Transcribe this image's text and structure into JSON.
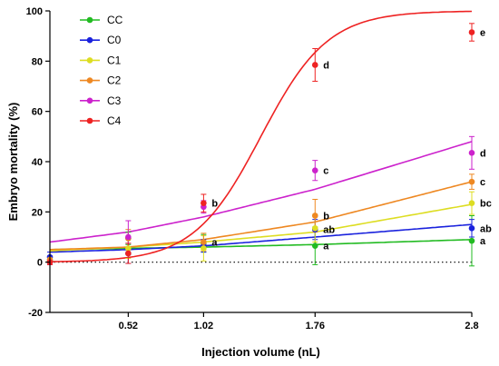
{
  "chart_data": {
    "type": "scatter",
    "xlabel": "Injection volume (nL)",
    "ylabel": "Embryo mortality (%)",
    "xlim": [
      0,
      2.8
    ],
    "ylim": [
      -20,
      100
    ],
    "x_ticks": [
      0.52,
      1.02,
      1.76,
      2.8
    ],
    "x_tick_labels": [
      "0.52",
      "1.02",
      "1.76",
      "2.8"
    ],
    "y_ticks": [
      -20,
      0,
      20,
      40,
      60,
      80,
      100
    ],
    "y_tick_labels": [
      "-20",
      "0",
      "20",
      "40",
      "60",
      "80",
      "100"
    ],
    "reference_line": 0,
    "legend_position": "top-left",
    "x": [
      0,
      0.52,
      1.02,
      1.76,
      2.8
    ],
    "series": [
      {
        "name": "CC",
        "color": "#22bb22",
        "values": [
          0.5,
          9.5,
          7.5,
          6.5,
          8.5
        ],
        "errors": [
          1.5,
          2.5,
          3.5,
          7.5,
          10
        ],
        "fit": [
          5,
          5.5,
          6,
          7,
          9
        ],
        "labels": [
          "",
          "",
          "",
          "a",
          "a"
        ]
      },
      {
        "name": "C0",
        "color": "#1a22dd",
        "values": [
          2,
          3.5,
          6.5,
          13,
          13.5
        ],
        "errors": [
          2,
          4,
          2.5,
          4,
          3.5
        ],
        "fit": [
          4,
          5,
          6.5,
          10,
          15
        ],
        "labels": [
          "",
          "",
          "",
          "ab",
          "ab"
        ]
      },
      {
        "name": "C1",
        "color": "#dddd22",
        "values": [
          1,
          5.5,
          5.5,
          13.5,
          23.5
        ],
        "errors": [
          1.5,
          4,
          5,
          5.5,
          4.5
        ],
        "fit": [
          4.5,
          6,
          8,
          12,
          23
        ],
        "labels": [
          "",
          "",
          "",
          "",
          "bc"
        ]
      },
      {
        "name": "C2",
        "color": "#ee8822",
        "values": [
          1,
          9.5,
          8,
          18.5,
          32
        ],
        "errors": [
          1.5,
          3.5,
          3.5,
          6.5,
          3
        ],
        "fit": [
          5,
          6,
          9,
          16,
          32
        ],
        "labels": [
          "",
          "",
          "a",
          "b",
          "c"
        ]
      },
      {
        "name": "C3",
        "color": "#cc22cc",
        "values": [
          0,
          10,
          22,
          36.5,
          43.5
        ],
        "errors": [
          1,
          6.5,
          2.5,
          4,
          6.5
        ],
        "fit": [
          8,
          12,
          18,
          29,
          48
        ],
        "labels": [
          "",
          "",
          "",
          "c",
          "d"
        ]
      },
      {
        "name": "C4",
        "color": "#ee2222",
        "values": [
          0,
          3.5,
          23.5,
          78.5,
          91.5
        ],
        "errors": [
          1,
          4,
          3.5,
          6.5,
          3.5
        ],
        "fit_logistic": {
          "top": 100,
          "bottom": 0,
          "midpoint": 1.4,
          "slope": 4.5
        },
        "labels": [
          "",
          "",
          "b",
          "d",
          "e"
        ]
      }
    ]
  }
}
